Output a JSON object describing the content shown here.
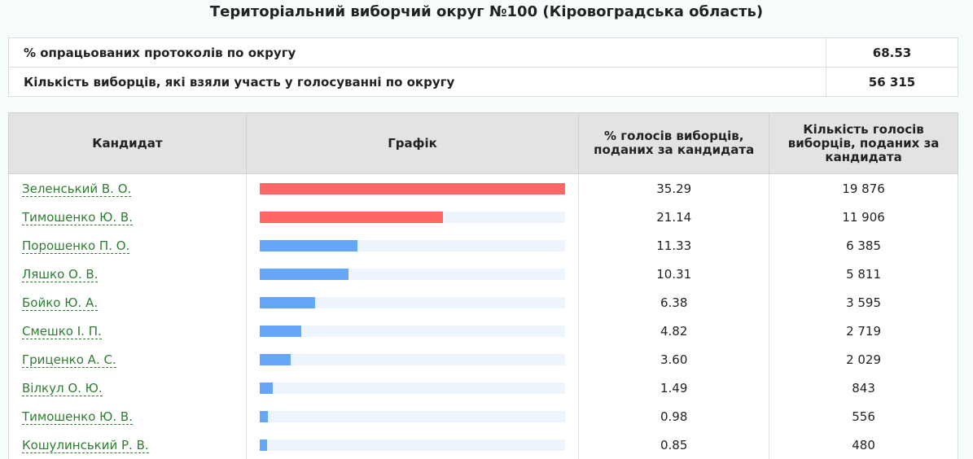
{
  "header": {
    "title": "Територіальний виборчий округ №100 (Кіровоградська область)"
  },
  "summary": [
    {
      "label": "% опрацьованих протоколів по округу",
      "value": "68.53"
    },
    {
      "label": "Кількість виборців, які взяли участь у голосуванні по округу",
      "value": "56 315"
    }
  ],
  "table": {
    "columns": [
      "Кандидат",
      "Графік",
      "% голосів виборців, поданих за кандидата",
      "Кількість голосів виборців, поданих за кандидата"
    ],
    "rows": [
      {
        "name": "Зеленський В. О.",
        "percent": "35.29",
        "votes": "19 876",
        "color": "#ff6666"
      },
      {
        "name": "Тимошенко Ю. В.",
        "percent": "21.14",
        "votes": "11 906",
        "color": "#ff6666"
      },
      {
        "name": "Порошенко П. О.",
        "percent": "11.33",
        "votes": "6 385",
        "color": "#66a6f7"
      },
      {
        "name": "Ляшко О. В.",
        "percent": "10.31",
        "votes": "5 811",
        "color": "#66a6f7"
      },
      {
        "name": "Бойко Ю. А.",
        "percent": "6.38",
        "votes": "3 595",
        "color": "#66a6f7"
      },
      {
        "name": "Смешко І. П.",
        "percent": "4.82",
        "votes": "2 719",
        "color": "#66a6f7"
      },
      {
        "name": "Гриценко А. С.",
        "percent": "3.60",
        "votes": "2 029",
        "color": "#66a6f7"
      },
      {
        "name": "Вілкул О. Ю.",
        "percent": "1.49",
        "votes": "843",
        "color": "#66a6f7"
      },
      {
        "name": "Тимошенко Ю. В.",
        "percent": "0.98",
        "votes": "556",
        "color": "#66a6f7"
      },
      {
        "name": "Кошулинський Р. В.",
        "percent": "0.85",
        "votes": "480",
        "color": "#66a6f7"
      }
    ]
  }
}
